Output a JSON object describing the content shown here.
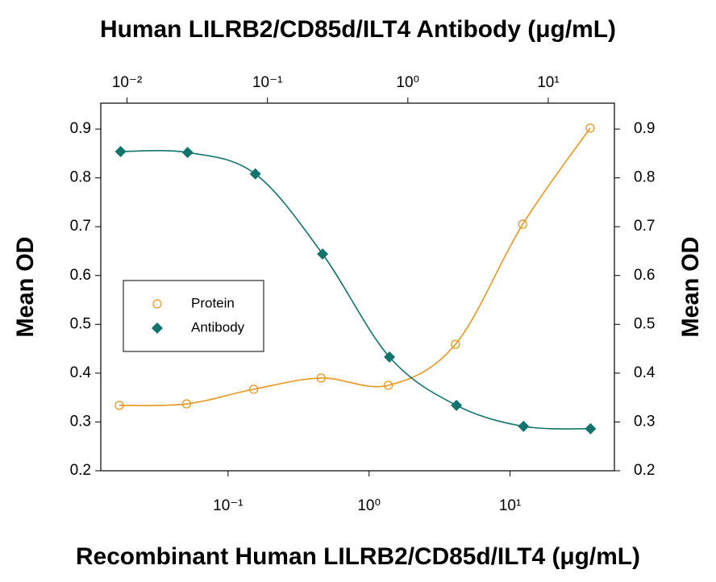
{
  "chart_data": {
    "type": "scatter",
    "title": "Human LILRB2/CD85d/ILT4 Antibody (μg/mL)",
    "x_label": "Recombinant Human LILRB2/CD85d/ILT4 (μg/mL)",
    "y_label": "Mean OD",
    "y2_label": "Mean OD",
    "x_log": true,
    "xlim": [
      0.0125,
      55
    ],
    "xticks": [
      {
        "value": 0.1,
        "label": "10⁻¹"
      },
      {
        "value": 1,
        "label": "10⁰"
      },
      {
        "value": 10,
        "label": "10¹"
      }
    ],
    "x2lim": [
      0.0065,
      29.6
    ],
    "x2ticks": [
      {
        "value": 0.01,
        "label": "10⁻²"
      },
      {
        "value": 0.1,
        "label": "10⁻¹"
      },
      {
        "value": 1,
        "label": "10⁰"
      },
      {
        "value": 10,
        "label": "10¹"
      }
    ],
    "ylim": [
      0.2,
      0.953
    ],
    "yticks": [
      0.2,
      0.3,
      0.4,
      0.5,
      0.6,
      0.7,
      0.8,
      0.9
    ],
    "y2lim": [
      0.2,
      0.953
    ],
    "y2ticks": [
      0.2,
      0.3,
      0.4,
      0.5,
      0.6,
      0.7,
      0.8,
      0.9
    ],
    "legend": "left",
    "series": [
      {
        "name": "Protein",
        "color": "#e8961e",
        "marker": "circle-open",
        "xaxis": "x",
        "x": [
          0.0169,
          0.0508,
          0.152,
          0.457,
          1.37,
          4.1,
          12.3,
          37
        ],
        "values": [
          0.334,
          0.337,
          0.367,
          0.39,
          0.375,
          0.459,
          0.705,
          0.902
        ]
      },
      {
        "name": "Antibody",
        "color": "#13746e",
        "marker": "diamond",
        "xaxis": "x2",
        "x": [
          0.009,
          0.027,
          0.082,
          0.247,
          0.74,
          2.22,
          6.67,
          20
        ],
        "values": [
          0.854,
          0.852,
          0.808,
          0.644,
          0.433,
          0.334,
          0.291,
          0.286
        ]
      }
    ]
  }
}
